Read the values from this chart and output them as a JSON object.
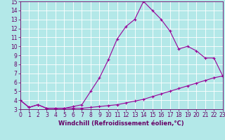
{
  "title": "",
  "xlabel": "Windchill (Refroidissement éolien,°C)",
  "ylabel": "",
  "background_color": "#b3e8e8",
  "line_color": "#990099",
  "grid_color": "#ffffff",
  "xlim": [
    0,
    23
  ],
  "ylim": [
    3,
    15
  ],
  "yticks": [
    3,
    4,
    5,
    6,
    7,
    8,
    9,
    10,
    11,
    12,
    13,
    14,
    15
  ],
  "xticks": [
    0,
    1,
    2,
    3,
    4,
    5,
    6,
    7,
    8,
    9,
    10,
    11,
    12,
    13,
    14,
    15,
    16,
    17,
    18,
    19,
    20,
    21,
    22,
    23
  ],
  "series1_x": [
    0,
    1,
    2,
    3,
    4,
    5,
    6,
    7,
    8,
    9,
    10,
    11,
    12,
    13,
    14,
    15,
    16,
    17,
    18,
    19,
    20,
    21,
    22,
    23
  ],
  "series1_y": [
    4.0,
    3.2,
    3.5,
    3.1,
    3.1,
    3.1,
    3.1,
    3.1,
    3.2,
    3.3,
    3.4,
    3.5,
    3.7,
    3.9,
    4.1,
    4.4,
    4.7,
    5.0,
    5.3,
    5.6,
    5.9,
    6.2,
    6.5,
    6.7
  ],
  "series2_x": [
    0,
    1,
    2,
    3,
    4,
    5,
    6,
    7,
    8,
    9,
    10,
    11,
    12,
    13,
    14,
    15,
    16,
    17,
    18,
    19,
    20,
    21,
    22,
    23
  ],
  "series2_y": [
    4.0,
    3.2,
    3.5,
    3.1,
    3.1,
    3.1,
    3.3,
    3.5,
    5.0,
    6.5,
    8.5,
    10.8,
    12.2,
    13.0,
    15.0,
    14.0,
    13.0,
    11.7,
    9.7,
    10.0,
    9.5,
    8.7,
    8.7,
    6.7
  ],
  "font_color": "#660066",
  "tick_fontsize": 5.5,
  "xlabel_fontsize": 6.0
}
